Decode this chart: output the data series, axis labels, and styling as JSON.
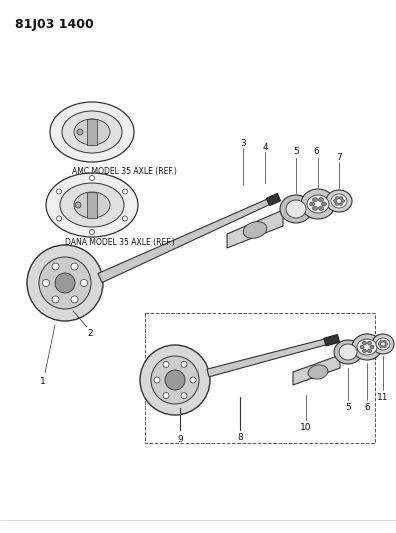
{
  "title_code": "81J03 1400",
  "bg_color": "#ffffff",
  "line_color": "#333333",
  "label_color": "#111111",
  "title_fontsize": 9,
  "label_fontsize": 6.5,
  "figsize": [
    3.96,
    5.33
  ],
  "dpi": 100,
  "amc_label": "AMC MODEL 35 AXLE (REF.)",
  "dana_label": "DANA MODEL 35 AXLE (REF.)"
}
